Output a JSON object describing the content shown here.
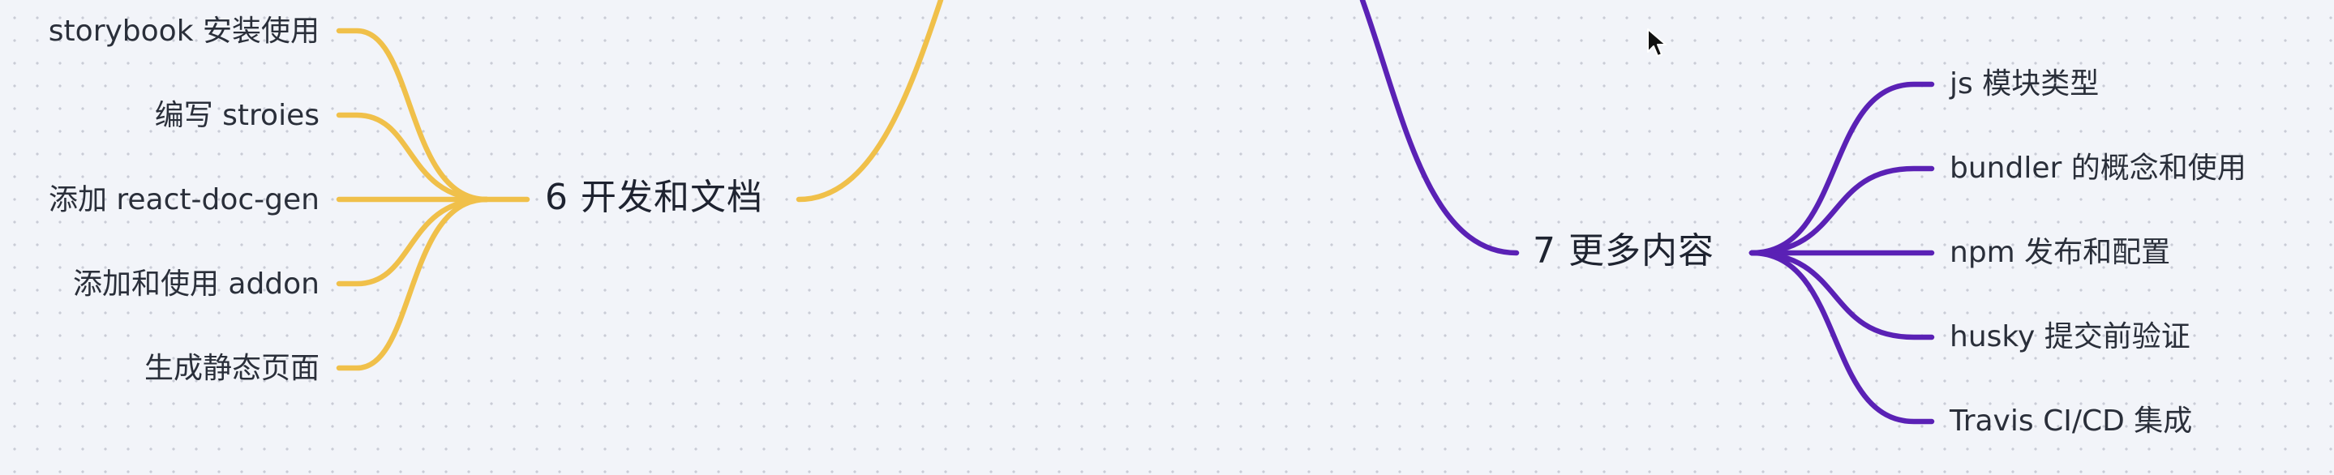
{
  "colors": {
    "background": "#f2f4f9",
    "yellow_branch": "#f0c04a",
    "purple_branch": "#5a21b5",
    "text": "#1f2430"
  },
  "mindmap": {
    "left_topic": {
      "label": "6 开发和文档",
      "children": [
        "storybook 安装使用",
        "编写 stroies",
        "添加 react-doc-gen",
        "添加和使用 addon",
        "生成静态页面"
      ]
    },
    "right_topic": {
      "label": "7 更多内容",
      "children": [
        "js 模块类型",
        "bundler 的概念和使用",
        "npm 发布和配置",
        "husky 提交前验证",
        "Travis CI/CD 集成"
      ]
    }
  },
  "pointer": {
    "icon": "mouse-pointer-icon"
  }
}
